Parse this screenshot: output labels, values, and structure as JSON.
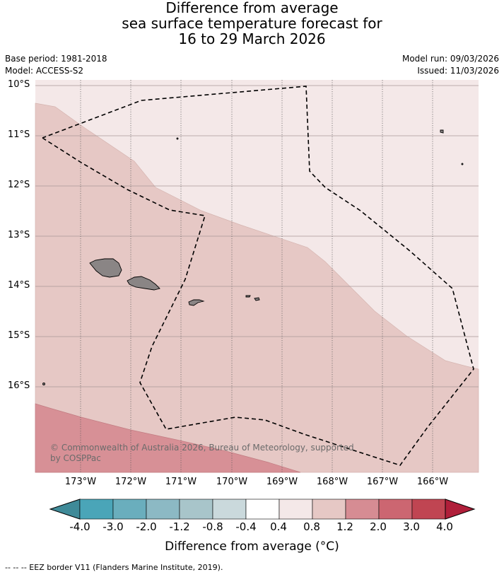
{
  "title": {
    "line1": "Difference from average",
    "line2": "sea surface temperature forecast for",
    "line3": "16 to 29 March 2026"
  },
  "meta": {
    "base_period": "Base period: 1981-2018",
    "model": "Model: ACCESS-S2",
    "model_run": "Model run: 09/03/2026",
    "issued": "Issued: 11/03/2026"
  },
  "map": {
    "lat_labels": [
      "10°S",
      "11°S",
      "12°S",
      "13°S",
      "14°S",
      "15°S",
      "16°S"
    ],
    "lon_labels": [
      "173°W",
      "172°W",
      "171°W",
      "170°W",
      "169°W",
      "168°W",
      "167°W",
      "166°W"
    ],
    "copyright": {
      "line1": "© Commonwealth of Australia 2026, Bureau of Meteorology, supported",
      "line2": "by COSPPac"
    },
    "colors": {
      "band_04_08": "#f4e8e8",
      "band_08_12": "#e6c8c5",
      "band_12_20": "#d79096",
      "land": "#8a8585"
    }
  },
  "colorbar": {
    "title": "Difference from average (°C)",
    "ticks": [
      "-4.0",
      "-3.0",
      "-2.0",
      "-1.2",
      "-0.8",
      "-0.4",
      "0.4",
      "0.8",
      "1.2",
      "2.0",
      "3.0",
      "4.0"
    ],
    "colors": [
      "#3f8a98",
      "#4aa5b8",
      "#6aaebd",
      "#8cb9c4",
      "#a8c5ca",
      "#cad9dc",
      "#ffffff",
      "#f4e8e8",
      "#e6c8c5",
      "#d68c93",
      "#cc6671",
      "#c04552",
      "#b01f3a"
    ]
  },
  "footer": {
    "legend": "--  --  -- EEZ border V11 (Flanders Marine Institute, 2019)."
  }
}
